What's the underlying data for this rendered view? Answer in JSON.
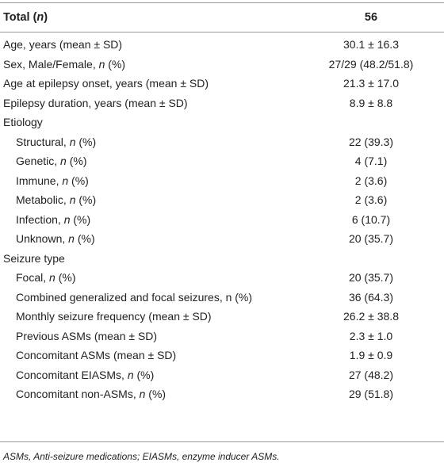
{
  "header": {
    "label": [
      "Total (",
      "n",
      ")"
    ],
    "value": "56"
  },
  "body": [
    {
      "label": [
        "Age, years (mean ± SD)"
      ],
      "value": "30.1 ± 16.3"
    },
    {
      "label": [
        "Sex, Male/Female, ",
        "n",
        " (%)"
      ],
      "value": "27/29 (48.2/51.8)"
    },
    {
      "label": [
        "Age at epilepsy onset, years (mean ± SD)"
      ],
      "value": "21.3 ± 17.0"
    },
    {
      "label": [
        "Epilepsy duration, years (mean ± SD)"
      ],
      "value": "8.9 ± 8.8"
    },
    {
      "label": [
        "Etiology"
      ],
      "rows": [
        {
          "label": [
            "Structural, ",
            "n",
            " (%)"
          ],
          "value": "22 (39.3)"
        },
        {
          "label": [
            "Genetic, ",
            "n",
            " (%)"
          ],
          "value": "4 (7.1)"
        },
        {
          "label": [
            "Immune, ",
            "n",
            " (%)"
          ],
          "value": "2 (3.6)"
        },
        {
          "label": [
            "Metabolic, ",
            "n",
            " (%)"
          ],
          "value": "2 (3.6)"
        },
        {
          "label": [
            "Infection, ",
            "n",
            " (%)"
          ],
          "value": "6 (10.7)"
        },
        {
          "label": [
            "Unknown, ",
            "n",
            " (%)"
          ],
          "value": "20 (35.7)"
        }
      ]
    },
    {
      "label": [
        "Seizure type"
      ],
      "rows": [
        {
          "label": [
            "Focal, ",
            "n",
            " (%)"
          ],
          "value": "20 (35.7)"
        },
        {
          "label": [
            "Combined generalized and focal seizures, n (%)"
          ],
          "value": "36 (64.3)"
        },
        {
          "label": [
            "Monthly seizure frequency (mean ± SD)"
          ],
          "value": "26.2 ± 38.8"
        },
        {
          "label": [
            "Previous ASMs (mean ± SD)"
          ],
          "value": "2.3 ± 1.0"
        },
        {
          "label": [
            "Concomitant ASMs (mean ± SD)"
          ],
          "value": "1.9 ± 0.9"
        },
        {
          "label": [
            "Concomitant EIASMs, ",
            "n",
            " (%)"
          ],
          "value": "27 (48.2)"
        },
        {
          "label": [
            "Concomitant non-ASMs, ",
            "n",
            " (%)"
          ],
          "value": "29 (51.8)"
        }
      ]
    }
  ],
  "footnote": "ASMs, Anti-seizure medications; EIASMs, enzyme inducer ASMs."
}
